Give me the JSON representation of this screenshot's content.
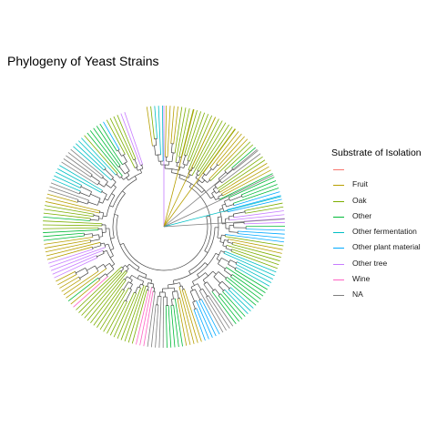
{
  "title": "Phylogeny of Yeast Strains",
  "legend": {
    "title": "Substrate of Isolation",
    "items": [
      {
        "label": "",
        "color": "#f8766d"
      },
      {
        "label": "Fruit",
        "color": "#b79f00"
      },
      {
        "label": "Oak",
        "color": "#7cae00"
      },
      {
        "label": "Other",
        "color": "#00ba38"
      },
      {
        "label": "Other fermentation",
        "color": "#00bfc4"
      },
      {
        "label": "Other plant material",
        "color": "#00a9ff"
      },
      {
        "label": "Other tree",
        "color": "#c77cff"
      },
      {
        "label": "Wine",
        "color": "#ff61c3"
      },
      {
        "label": "NA",
        "color": "#7f7f7f"
      }
    ]
  },
  "tree": {
    "layout": "circular",
    "tip_count": 190
  }
}
